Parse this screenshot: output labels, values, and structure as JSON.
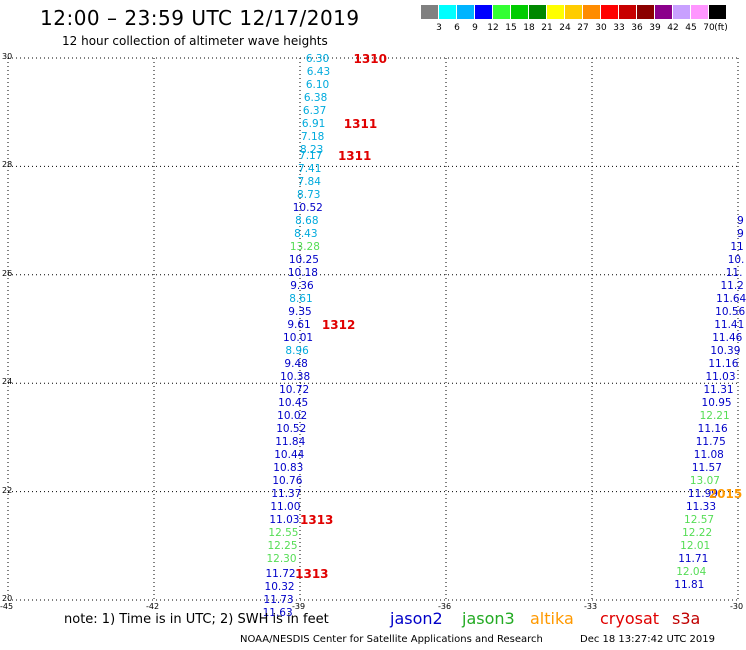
{
  "header": {
    "title": "12:00 – 23:59 UTC 12/17/2019",
    "subtitle": "12 hour collection of altimeter wave heights"
  },
  "legend": {
    "unit": "(ft)",
    "scale": [
      {
        "color": "#808080",
        "label": "3"
      },
      {
        "color": "#00ffff",
        "label": "6"
      },
      {
        "color": "#00b4ff",
        "label": "9"
      },
      {
        "color": "#0000ff",
        "label": "12"
      },
      {
        "color": "#33ff33",
        "label": "15"
      },
      {
        "color": "#00cc00",
        "label": "18"
      },
      {
        "color": "#008800",
        "label": "21"
      },
      {
        "color": "#ffff00",
        "label": "24"
      },
      {
        "color": "#ffcc00",
        "label": "27"
      },
      {
        "color": "#ff8c00",
        "label": "30"
      },
      {
        "color": "#ff0000",
        "label": "33"
      },
      {
        "color": "#c80000",
        "label": "36"
      },
      {
        "color": "#8b0000",
        "label": "39"
      },
      {
        "color": "#8b008b",
        "label": "42"
      },
      {
        "color": "#c8a0ff",
        "label": "45"
      },
      {
        "color": "#ff96ff",
        "label": "70"
      },
      {
        "color": "#000000",
        "label": ""
      }
    ]
  },
  "axes": {
    "x_ticks": [
      "-45",
      "-42",
      "-39",
      "-36",
      "-33",
      "-30"
    ],
    "y_ticks": [
      "30",
      "28",
      "26",
      "24",
      "22",
      "20"
    ]
  },
  "satellite_colors": {
    "jason2": "#0000c8",
    "jason3": "#22aa22",
    "altika": "#ff9900",
    "cryosat": "#e00000",
    "s3a": "#c00000",
    "jason3_light": "#55dd55",
    "cyan": "#00aadd"
  },
  "track_west": [
    {
      "v": "6.30",
      "lon": -38.64,
      "lat": 29.98,
      "c": "cyan"
    },
    {
      "v": "6.43",
      "lon": -38.62,
      "lat": 29.74,
      "c": "cyan"
    },
    {
      "v": "6.10",
      "lon": -38.64,
      "lat": 29.51,
      "c": "cyan"
    },
    {
      "v": "6.38",
      "lon": -38.68,
      "lat": 29.27,
      "c": "cyan"
    },
    {
      "v": "6.37",
      "lon": -38.7,
      "lat": 29.03,
      "c": "cyan"
    },
    {
      "v": "6.91",
      "lon": -38.72,
      "lat": 28.79,
      "c": "cyan"
    },
    {
      "v": "7.18",
      "lon": -38.74,
      "lat": 28.55,
      "c": "cyan"
    },
    {
      "v": "8.23",
      "lon": -38.76,
      "lat": 28.31,
      "c": "cyan"
    },
    {
      "v": "7.17",
      "lon": -38.78,
      "lat": 28.2,
      "c": "cyan"
    },
    {
      "v": "7.41",
      "lon": -38.8,
      "lat": 27.96,
      "c": "cyan"
    },
    {
      "v": "7.84",
      "lon": -38.81,
      "lat": 27.72,
      "c": "cyan"
    },
    {
      "v": "8.73",
      "lon": -38.82,
      "lat": 27.48,
      "c": "cyan"
    },
    {
      "v": "10.52",
      "lon": -38.84,
      "lat": 27.24,
      "c": "jason2"
    },
    {
      "v": "8.68",
      "lon": -38.86,
      "lat": 27.0,
      "c": "cyan"
    },
    {
      "v": "8.43",
      "lon": -38.88,
      "lat": 26.76,
      "c": "cyan"
    },
    {
      "v": "13.28",
      "lon": -38.9,
      "lat": 26.52,
      "c": "jason3_light"
    },
    {
      "v": "10.25",
      "lon": -38.92,
      "lat": 26.28,
      "c": "jason2"
    },
    {
      "v": "10.18",
      "lon": -38.94,
      "lat": 26.04,
      "c": "jason2"
    },
    {
      "v": "9.36",
      "lon": -38.96,
      "lat": 25.8,
      "c": "jason2"
    },
    {
      "v": "8.61",
      "lon": -38.98,
      "lat": 25.56,
      "c": "cyan"
    },
    {
      "v": "9.35",
      "lon": -39.0,
      "lat": 25.32,
      "c": "jason2"
    },
    {
      "v": "9.61",
      "lon": -39.02,
      "lat": 25.08,
      "c": "jason2"
    },
    {
      "v": "10.01",
      "lon": -39.04,
      "lat": 24.84,
      "c": "jason2"
    },
    {
      "v": "8.96",
      "lon": -39.06,
      "lat": 24.6,
      "c": "cyan"
    },
    {
      "v": "9.48",
      "lon": -39.08,
      "lat": 24.36,
      "c": "jason2"
    },
    {
      "v": "10.38",
      "lon": -39.1,
      "lat": 24.12,
      "c": "jason2"
    },
    {
      "v": "10.72",
      "lon": -39.12,
      "lat": 23.88,
      "c": "jason2"
    },
    {
      "v": "10.45",
      "lon": -39.14,
      "lat": 23.64,
      "c": "jason2"
    },
    {
      "v": "10.02",
      "lon": -39.16,
      "lat": 23.4,
      "c": "jason2"
    },
    {
      "v": "10.52",
      "lon": -39.18,
      "lat": 23.16,
      "c": "jason2"
    },
    {
      "v": "11.84",
      "lon": -39.2,
      "lat": 22.92,
      "c": "jason2"
    },
    {
      "v": "10.44",
      "lon": -39.22,
      "lat": 22.68,
      "c": "jason2"
    },
    {
      "v": "10.83",
      "lon": -39.24,
      "lat": 22.44,
      "c": "jason2"
    },
    {
      "v": "10.76",
      "lon": -39.26,
      "lat": 22.2,
      "c": "jason2"
    },
    {
      "v": "11.37",
      "lon": -39.28,
      "lat": 21.96,
      "c": "jason2"
    },
    {
      "v": "11.00",
      "lon": -39.3,
      "lat": 21.72,
      "c": "jason2"
    },
    {
      "v": "11.03",
      "lon": -39.32,
      "lat": 21.48,
      "c": "jason2"
    },
    {
      "v": "12.55",
      "lon": -39.34,
      "lat": 21.24,
      "c": "jason3_light"
    },
    {
      "v": "12.25",
      "lon": -39.36,
      "lat": 21.0,
      "c": "jason3_light"
    },
    {
      "v": "12.30",
      "lon": -39.38,
      "lat": 20.76,
      "c": "jason3_light"
    },
    {
      "v": "11.72",
      "lon": -39.4,
      "lat": 20.48,
      "c": "jason2"
    },
    {
      "v": "10.32",
      "lon": -39.42,
      "lat": 20.24,
      "c": "jason2"
    },
    {
      "v": "11.73",
      "lon": -39.44,
      "lat": 20.0,
      "c": "jason2"
    },
    {
      "v": "11.63",
      "lon": -39.46,
      "lat": 19.76,
      "c": "jason2"
    }
  ],
  "track_east": [
    {
      "v": "9",
      "lon": -29.95,
      "lat": 27.0,
      "c": "jason2"
    },
    {
      "v": "9",
      "lon": -29.95,
      "lat": 26.76,
      "c": "jason2"
    },
    {
      "v": "11",
      "lon": -30.02,
      "lat": 26.52,
      "c": "jason2"
    },
    {
      "v": "10.",
      "lon": -30.04,
      "lat": 26.28,
      "c": "jason2"
    },
    {
      "v": "11.",
      "lon": -30.08,
      "lat": 26.04,
      "c": "jason2"
    },
    {
      "v": "11.2",
      "lon": -30.12,
      "lat": 25.8,
      "c": "jason2"
    },
    {
      "v": "11.64",
      "lon": -30.14,
      "lat": 25.56,
      "c": "jason2"
    },
    {
      "v": "10.56",
      "lon": -30.16,
      "lat": 25.32,
      "c": "jason2"
    },
    {
      "v": "11.41",
      "lon": -30.18,
      "lat": 25.08,
      "c": "jason2"
    },
    {
      "v": "11.46",
      "lon": -30.22,
      "lat": 24.84,
      "c": "jason2"
    },
    {
      "v": "10.39",
      "lon": -30.26,
      "lat": 24.6,
      "c": "jason2"
    },
    {
      "v": "11.16",
      "lon": -30.3,
      "lat": 24.36,
      "c": "jason2"
    },
    {
      "v": "11.03",
      "lon": -30.36,
      "lat": 24.12,
      "c": "jason2"
    },
    {
      "v": "11.31",
      "lon": -30.4,
      "lat": 23.88,
      "c": "jason2"
    },
    {
      "v": "10.95",
      "lon": -30.44,
      "lat": 23.64,
      "c": "jason2"
    },
    {
      "v": "12.21",
      "lon": -30.48,
      "lat": 23.4,
      "c": "jason3_light"
    },
    {
      "v": "11.16",
      "lon": -30.52,
      "lat": 23.16,
      "c": "jason2"
    },
    {
      "v": "11.75",
      "lon": -30.56,
      "lat": 22.92,
      "c": "jason2"
    },
    {
      "v": "11.08",
      "lon": -30.6,
      "lat": 22.68,
      "c": "jason2"
    },
    {
      "v": "11.57",
      "lon": -30.64,
      "lat": 22.44,
      "c": "jason2"
    },
    {
      "v": "13.07",
      "lon": -30.68,
      "lat": 22.2,
      "c": "jason3_light"
    },
    {
      "v": "11.99",
      "lon": -30.72,
      "lat": 21.96,
      "c": "jason2"
    },
    {
      "v": "11.33",
      "lon": -30.76,
      "lat": 21.72,
      "c": "jason2"
    },
    {
      "v": "12.57",
      "lon": -30.8,
      "lat": 21.48,
      "c": "jason3_light"
    },
    {
      "v": "12.22",
      "lon": -30.84,
      "lat": 21.24,
      "c": "jason3_light"
    },
    {
      "v": "12.01",
      "lon": -30.88,
      "lat": 21.0,
      "c": "jason3_light"
    },
    {
      "v": "11.71",
      "lon": -30.92,
      "lat": 20.76,
      "c": "jason2"
    },
    {
      "v": "12.04",
      "lon": -30.96,
      "lat": 20.52,
      "c": "jason3_light"
    },
    {
      "v": "11.81",
      "lon": -31.0,
      "lat": 20.28,
      "c": "jason2"
    }
  ],
  "pass_times": [
    {
      "t": "1310",
      "lon": -37.9,
      "lat": 29.98
    },
    {
      "t": "1311",
      "lon": -38.1,
      "lat": 28.79
    },
    {
      "t": "1311",
      "lon": -38.22,
      "lat": 28.2
    },
    {
      "t": "1312",
      "lon": -38.55,
      "lat": 25.08
    },
    {
      "t": "1313",
      "lon": -39.0,
      "lat": 21.48
    },
    {
      "t": "1313",
      "lon": -39.1,
      "lat": 20.48
    }
  ],
  "pass_times_partial": [
    {
      "t": "2015",
      "lon": -30.6,
      "lat": 21.96
    }
  ],
  "footer": {
    "note": "note: 1) Time is in UTC; 2) SWH is in feet",
    "sats": [
      "jason2",
      "jason3",
      "altika",
      "cryosat",
      "s3a"
    ],
    "credit": "NOAA/NESDIS Center for Satellite Applications and Research",
    "stamp": "Dec 18 13:27:42 UTC 2019"
  }
}
